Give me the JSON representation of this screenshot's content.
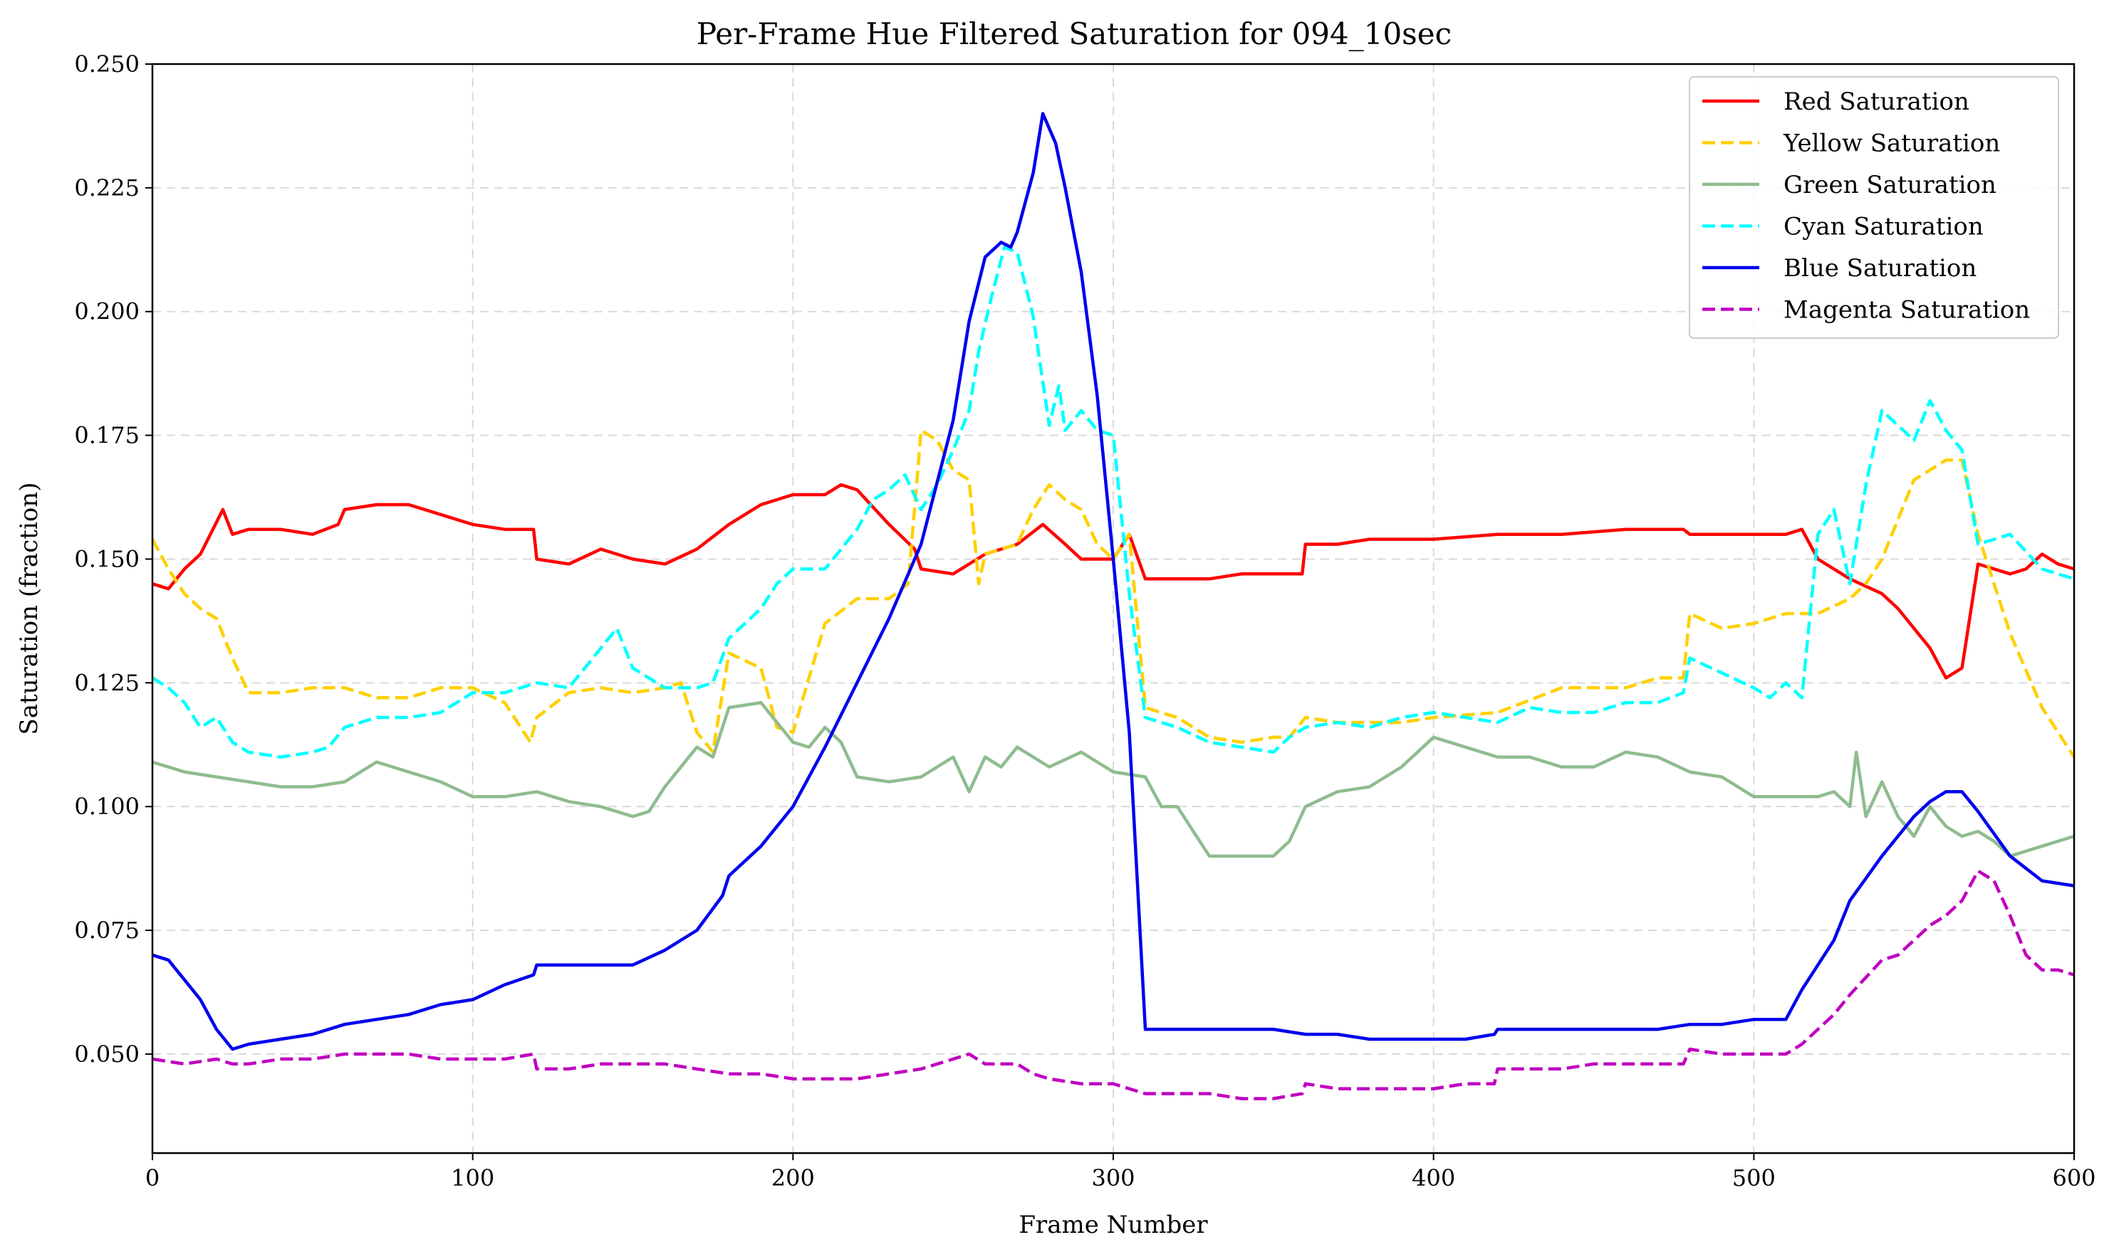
{
  "chart_data": {
    "type": "line",
    "title": "Per-Frame Hue Filtered Saturation for 094_10sec",
    "xlabel": "Frame Number",
    "ylabel": "Saturation (fraction)",
    "xlim": [
      0,
      600
    ],
    "ylim": [
      0.03,
      0.25
    ],
    "xticks": [
      0,
      100,
      200,
      300,
      400,
      500,
      600
    ],
    "yticks": [
      0.05,
      0.075,
      0.1,
      0.125,
      0.15,
      0.175,
      0.2,
      0.225,
      0.25
    ],
    "xtick_labels": [
      "0",
      "100",
      "200",
      "300",
      "400",
      "500",
      "600"
    ],
    "ytick_labels": [
      "0.050",
      "0.075",
      "0.100",
      "0.125",
      "0.150",
      "0.175",
      "0.200",
      "0.225",
      "0.250"
    ],
    "grid": true,
    "legend_position": "top-right",
    "series": [
      {
        "name": "Red Saturation",
        "color": "#ff0000",
        "dash": "solid",
        "x": [
          0,
          5,
          10,
          15,
          22,
          25,
          30,
          40,
          50,
          58,
          60,
          70,
          80,
          90,
          100,
          110,
          119,
          120,
          130,
          140,
          150,
          160,
          170,
          180,
          190,
          200,
          210,
          215,
          220,
          230,
          238,
          240,
          250,
          260,
          270,
          278,
          285,
          290,
          300,
          305,
          310,
          320,
          330,
          340,
          350,
          359,
          360,
          370,
          380,
          390,
          400,
          420,
          440,
          460,
          470,
          478,
          480,
          490,
          500,
          510,
          515,
          520,
          530,
          540,
          545,
          550,
          555,
          560,
          565,
          570,
          580,
          585,
          590,
          595,
          600
        ],
        "y": [
          0.145,
          0.144,
          0.148,
          0.151,
          0.16,
          0.155,
          0.156,
          0.156,
          0.155,
          0.157,
          0.16,
          0.161,
          0.161,
          0.159,
          0.157,
          0.156,
          0.156,
          0.15,
          0.149,
          0.152,
          0.15,
          0.149,
          0.152,
          0.157,
          0.161,
          0.163,
          0.163,
          0.165,
          0.164,
          0.157,
          0.152,
          0.148,
          0.147,
          0.151,
          0.153,
          0.157,
          0.153,
          0.15,
          0.15,
          0.155,
          0.146,
          0.146,
          0.146,
          0.147,
          0.147,
          0.147,
          0.153,
          0.153,
          0.154,
          0.154,
          0.154,
          0.155,
          0.155,
          0.156,
          0.156,
          0.156,
          0.155,
          0.155,
          0.155,
          0.155,
          0.156,
          0.15,
          0.146,
          0.143,
          0.14,
          0.136,
          0.132,
          0.126,
          0.128,
          0.149,
          0.147,
          0.148,
          0.151,
          0.149,
          0.148
        ]
      },
      {
        "name": "Yellow Saturation",
        "color": "#ffd000",
        "dash": "dashed",
        "x": [
          0,
          5,
          10,
          15,
          20,
          25,
          30,
          40,
          50,
          60,
          70,
          80,
          90,
          100,
          110,
          118,
          120,
          130,
          140,
          150,
          160,
          165,
          170,
          175,
          180,
          190,
          195,
          200,
          210,
          220,
          230,
          236,
          240,
          245,
          250,
          255,
          258,
          260,
          265,
          270,
          275,
          280,
          285,
          290,
          295,
          300,
          305,
          310,
          320,
          330,
          340,
          350,
          355,
          360,
          370,
          380,
          390,
          400,
          420,
          440,
          460,
          470,
          478,
          480,
          490,
          500,
          510,
          520,
          530,
          535,
          540,
          545,
          550,
          555,
          560,
          565,
          570,
          580,
          590,
          600
        ],
        "y": [
          0.154,
          0.148,
          0.143,
          0.14,
          0.138,
          0.13,
          0.123,
          0.123,
          0.124,
          0.124,
          0.122,
          0.122,
          0.124,
          0.124,
          0.121,
          0.113,
          0.118,
          0.123,
          0.124,
          0.123,
          0.124,
          0.125,
          0.115,
          0.111,
          0.131,
          0.128,
          0.116,
          0.115,
          0.137,
          0.142,
          0.142,
          0.145,
          0.176,
          0.174,
          0.168,
          0.166,
          0.145,
          0.151,
          0.152,
          0.153,
          0.16,
          0.165,
          0.162,
          0.16,
          0.153,
          0.15,
          0.155,
          0.12,
          0.118,
          0.114,
          0.113,
          0.114,
          0.114,
          0.118,
          0.117,
          0.117,
          0.117,
          0.118,
          0.119,
          0.124,
          0.124,
          0.126,
          0.126,
          0.139,
          0.136,
          0.137,
          0.139,
          0.139,
          0.142,
          0.145,
          0.15,
          0.158,
          0.166,
          0.168,
          0.17,
          0.17,
          0.155,
          0.135,
          0.12,
          0.11
        ]
      },
      {
        "name": "Green Saturation",
        "color": "#8fbc8f",
        "dash": "solid",
        "x": [
          0,
          10,
          20,
          30,
          40,
          50,
          60,
          70,
          80,
          90,
          100,
          110,
          120,
          130,
          140,
          150,
          155,
          160,
          170,
          175,
          180,
          190,
          195,
          200,
          205,
          210,
          215,
          220,
          230,
          240,
          250,
          255,
          260,
          265,
          270,
          280,
          290,
          300,
          310,
          315,
          320,
          330,
          340,
          350,
          355,
          360,
          370,
          380,
          390,
          400,
          410,
          420,
          430,
          440,
          450,
          460,
          470,
          480,
          490,
          500,
          510,
          520,
          525,
          530,
          532,
          535,
          540,
          545,
          550,
          555,
          560,
          565,
          570,
          575,
          580,
          590,
          600
        ],
        "y": [
          0.109,
          0.107,
          0.106,
          0.105,
          0.104,
          0.104,
          0.105,
          0.109,
          0.107,
          0.105,
          0.102,
          0.102,
          0.103,
          0.101,
          0.1,
          0.098,
          0.099,
          0.104,
          0.112,
          0.11,
          0.12,
          0.121,
          0.117,
          0.113,
          0.112,
          0.116,
          0.113,
          0.106,
          0.105,
          0.106,
          0.11,
          0.103,
          0.11,
          0.108,
          0.112,
          0.108,
          0.111,
          0.107,
          0.106,
          0.1,
          0.1,
          0.09,
          0.09,
          0.09,
          0.093,
          0.1,
          0.103,
          0.104,
          0.108,
          0.114,
          0.112,
          0.11,
          0.11,
          0.108,
          0.108,
          0.111,
          0.11,
          0.107,
          0.106,
          0.102,
          0.102,
          0.102,
          0.103,
          0.1,
          0.111,
          0.098,
          0.105,
          0.098,
          0.094,
          0.1,
          0.096,
          0.094,
          0.095,
          0.093,
          0.09,
          0.092,
          0.094
        ]
      },
      {
        "name": "Cyan Saturation",
        "color": "#00ffff",
        "dash": "dashed",
        "x": [
          0,
          5,
          10,
          15,
          20,
          25,
          30,
          40,
          50,
          55,
          60,
          70,
          80,
          90,
          100,
          110,
          120,
          130,
          135,
          140,
          145,
          150,
          155,
          160,
          170,
          175,
          180,
          190,
          195,
          200,
          210,
          220,
          225,
          230,
          235,
          240,
          245,
          250,
          255,
          258,
          262,
          266,
          270,
          275,
          280,
          283,
          285,
          290,
          295,
          300,
          305,
          310,
          320,
          330,
          340,
          350,
          355,
          360,
          370,
          380,
          390,
          400,
          410,
          420,
          430,
          440,
          450,
          460,
          470,
          478,
          480,
          490,
          500,
          505,
          510,
          515,
          520,
          525,
          530,
          535,
          540,
          545,
          550,
          555,
          560,
          565,
          570,
          580,
          590,
          600
        ],
        "y": [
          0.126,
          0.124,
          0.121,
          0.116,
          0.118,
          0.113,
          0.111,
          0.11,
          0.111,
          0.112,
          0.116,
          0.118,
          0.118,
          0.119,
          0.123,
          0.123,
          0.125,
          0.124,
          0.128,
          0.132,
          0.136,
          0.128,
          0.126,
          0.124,
          0.124,
          0.125,
          0.134,
          0.14,
          0.145,
          0.148,
          0.148,
          0.156,
          0.162,
          0.164,
          0.167,
          0.16,
          0.165,
          0.172,
          0.18,
          0.192,
          0.203,
          0.213,
          0.212,
          0.199,
          0.177,
          0.185,
          0.176,
          0.18,
          0.176,
          0.175,
          0.143,
          0.118,
          0.116,
          0.113,
          0.112,
          0.111,
          0.114,
          0.116,
          0.117,
          0.116,
          0.118,
          0.119,
          0.118,
          0.117,
          0.12,
          0.119,
          0.119,
          0.121,
          0.121,
          0.123,
          0.13,
          0.127,
          0.124,
          0.122,
          0.125,
          0.122,
          0.155,
          0.16,
          0.145,
          0.165,
          0.18,
          0.177,
          0.174,
          0.182,
          0.176,
          0.172,
          0.153,
          0.155,
          0.148,
          0.146
        ]
      },
      {
        "name": "Blue Saturation",
        "color": "#0000ee",
        "dash": "solid",
        "x": [
          0,
          5,
          10,
          15,
          20,
          25,
          30,
          40,
          50,
          60,
          70,
          80,
          90,
          100,
          110,
          119,
          120,
          130,
          140,
          150,
          160,
          170,
          178,
          180,
          190,
          200,
          210,
          220,
          230,
          240,
          250,
          255,
          260,
          265,
          268,
          270,
          275,
          278,
          282,
          285,
          290,
          295,
          300,
          305,
          310,
          320,
          330,
          340,
          350,
          360,
          370,
          380,
          390,
          400,
          410,
          419,
          420,
          430,
          440,
          450,
          460,
          470,
          480,
          490,
          500,
          510,
          515,
          520,
          525,
          530,
          540,
          550,
          555,
          560,
          565,
          570,
          580,
          590,
          600
        ],
        "y": [
          0.07,
          0.069,
          0.065,
          0.061,
          0.055,
          0.051,
          0.052,
          0.053,
          0.054,
          0.056,
          0.057,
          0.058,
          0.06,
          0.061,
          0.064,
          0.066,
          0.068,
          0.068,
          0.068,
          0.068,
          0.071,
          0.075,
          0.082,
          0.086,
          0.092,
          0.1,
          0.112,
          0.125,
          0.138,
          0.153,
          0.178,
          0.198,
          0.211,
          0.214,
          0.213,
          0.216,
          0.228,
          0.24,
          0.234,
          0.225,
          0.208,
          0.183,
          0.15,
          0.115,
          0.055,
          0.055,
          0.055,
          0.055,
          0.055,
          0.054,
          0.054,
          0.053,
          0.053,
          0.053,
          0.053,
          0.054,
          0.055,
          0.055,
          0.055,
          0.055,
          0.055,
          0.055,
          0.056,
          0.056,
          0.057,
          0.057,
          0.063,
          0.068,
          0.073,
          0.081,
          0.09,
          0.098,
          0.101,
          0.103,
          0.103,
          0.099,
          0.09,
          0.085,
          0.084
        ]
      },
      {
        "name": "Magenta Saturation",
        "color": "#c000c0",
        "dash": "dashed",
        "x": [
          0,
          10,
          20,
          25,
          30,
          40,
          50,
          60,
          70,
          80,
          90,
          100,
          110,
          119,
          120,
          130,
          140,
          150,
          160,
          170,
          180,
          190,
          200,
          210,
          220,
          230,
          240,
          250,
          255,
          260,
          270,
          275,
          280,
          290,
          300,
          305,
          310,
          320,
          330,
          340,
          350,
          359,
          360,
          370,
          380,
          390,
          400,
          410,
          419,
          420,
          430,
          440,
          450,
          460,
          470,
          478,
          480,
          490,
          500,
          510,
          515,
          520,
          525,
          530,
          540,
          545,
          550,
          555,
          560,
          565,
          570,
          575,
          580,
          585,
          590,
          595,
          600
        ],
        "y": [
          0.049,
          0.048,
          0.049,
          0.048,
          0.048,
          0.049,
          0.049,
          0.05,
          0.05,
          0.05,
          0.049,
          0.049,
          0.049,
          0.05,
          0.047,
          0.047,
          0.048,
          0.048,
          0.048,
          0.047,
          0.046,
          0.046,
          0.045,
          0.045,
          0.045,
          0.046,
          0.047,
          0.049,
          0.05,
          0.048,
          0.048,
          0.046,
          0.045,
          0.044,
          0.044,
          0.043,
          0.042,
          0.042,
          0.042,
          0.041,
          0.041,
          0.042,
          0.044,
          0.043,
          0.043,
          0.043,
          0.043,
          0.044,
          0.044,
          0.047,
          0.047,
          0.047,
          0.048,
          0.048,
          0.048,
          0.048,
          0.051,
          0.05,
          0.05,
          0.05,
          0.052,
          0.055,
          0.058,
          0.062,
          0.069,
          0.07,
          0.073,
          0.076,
          0.078,
          0.081,
          0.087,
          0.085,
          0.078,
          0.07,
          0.067,
          0.067,
          0.066
        ]
      }
    ]
  }
}
